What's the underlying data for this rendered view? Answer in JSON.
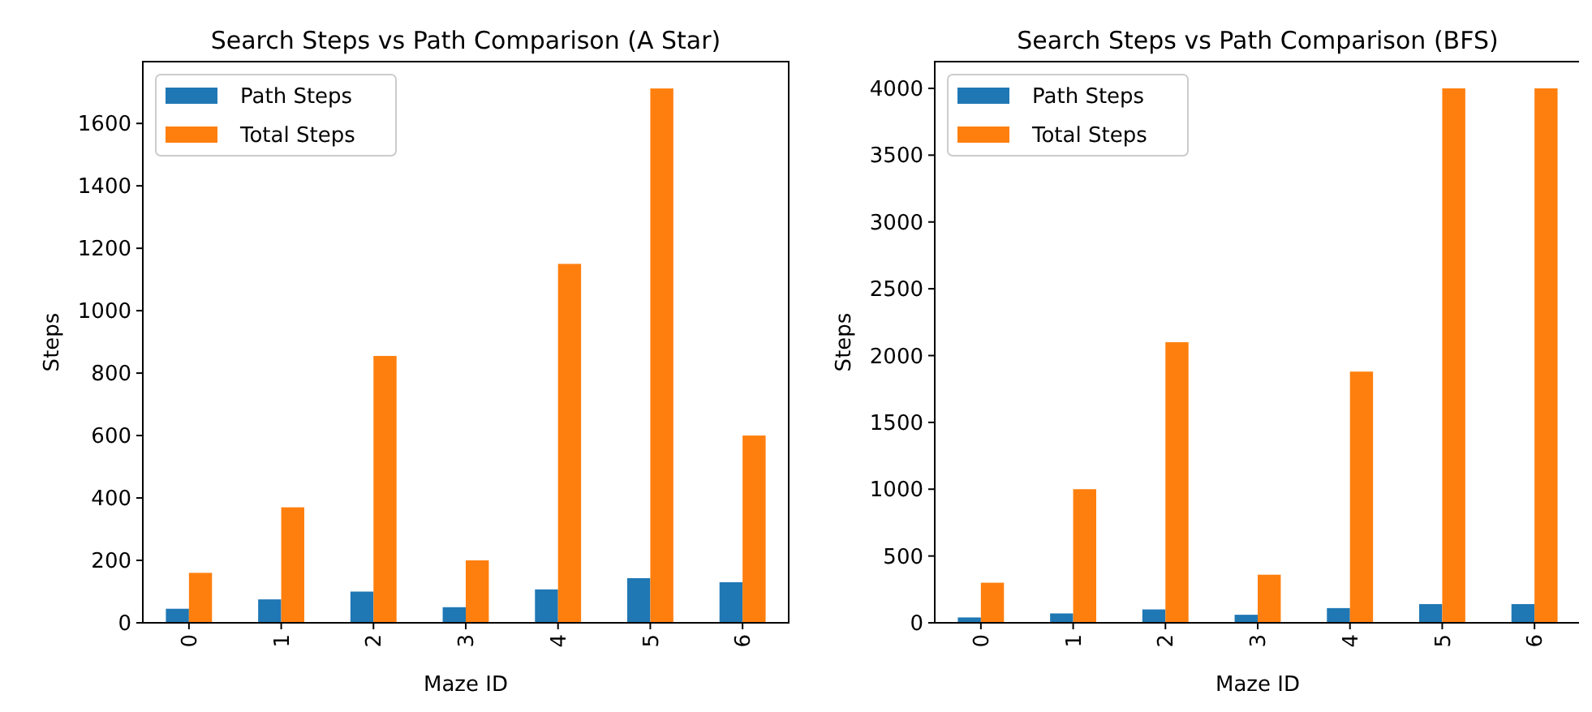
{
  "chart_data": [
    {
      "type": "bar",
      "title": "Search Steps vs Path Comparison (A Star)",
      "xlabel": "Maze ID",
      "ylabel": "Steps",
      "categories": [
        "0",
        "1",
        "2",
        "3",
        "4",
        "5",
        "6"
      ],
      "series": [
        {
          "name": "Path Steps",
          "color": "#1f77b4",
          "values": [
            45,
            75,
            100,
            50,
            107,
            143,
            130
          ]
        },
        {
          "name": "Total Steps",
          "color": "#ff7f0e",
          "values": [
            160,
            370,
            855,
            200,
            1150,
            1712,
            600
          ]
        }
      ],
      "ylim": [
        0,
        1798
      ],
      "yticks": [
        0,
        200,
        400,
        600,
        800,
        1000,
        1200,
        1400,
        1600
      ],
      "legend": "top left",
      "grid": false
    },
    {
      "type": "bar",
      "title": "Search Steps vs Path Comparison (BFS)",
      "xlabel": "Maze ID",
      "ylabel": "Steps",
      "categories": [
        "0",
        "1",
        "2",
        "3",
        "4",
        "5",
        "6"
      ],
      "series": [
        {
          "name": "Path Steps",
          "color": "#1f77b4",
          "values": [
            40,
            70,
            100,
            60,
            110,
            140,
            140
          ]
        },
        {
          "name": "Total Steps",
          "color": "#ff7f0e",
          "values": [
            300,
            1000,
            2100,
            360,
            1880,
            4000,
            4000
          ]
        }
      ],
      "ylim": [
        0,
        4200
      ],
      "yticks": [
        0,
        500,
        1000,
        1500,
        2000,
        2500,
        3000,
        3500,
        4000
      ],
      "legend": "top left",
      "grid": false
    }
  ]
}
